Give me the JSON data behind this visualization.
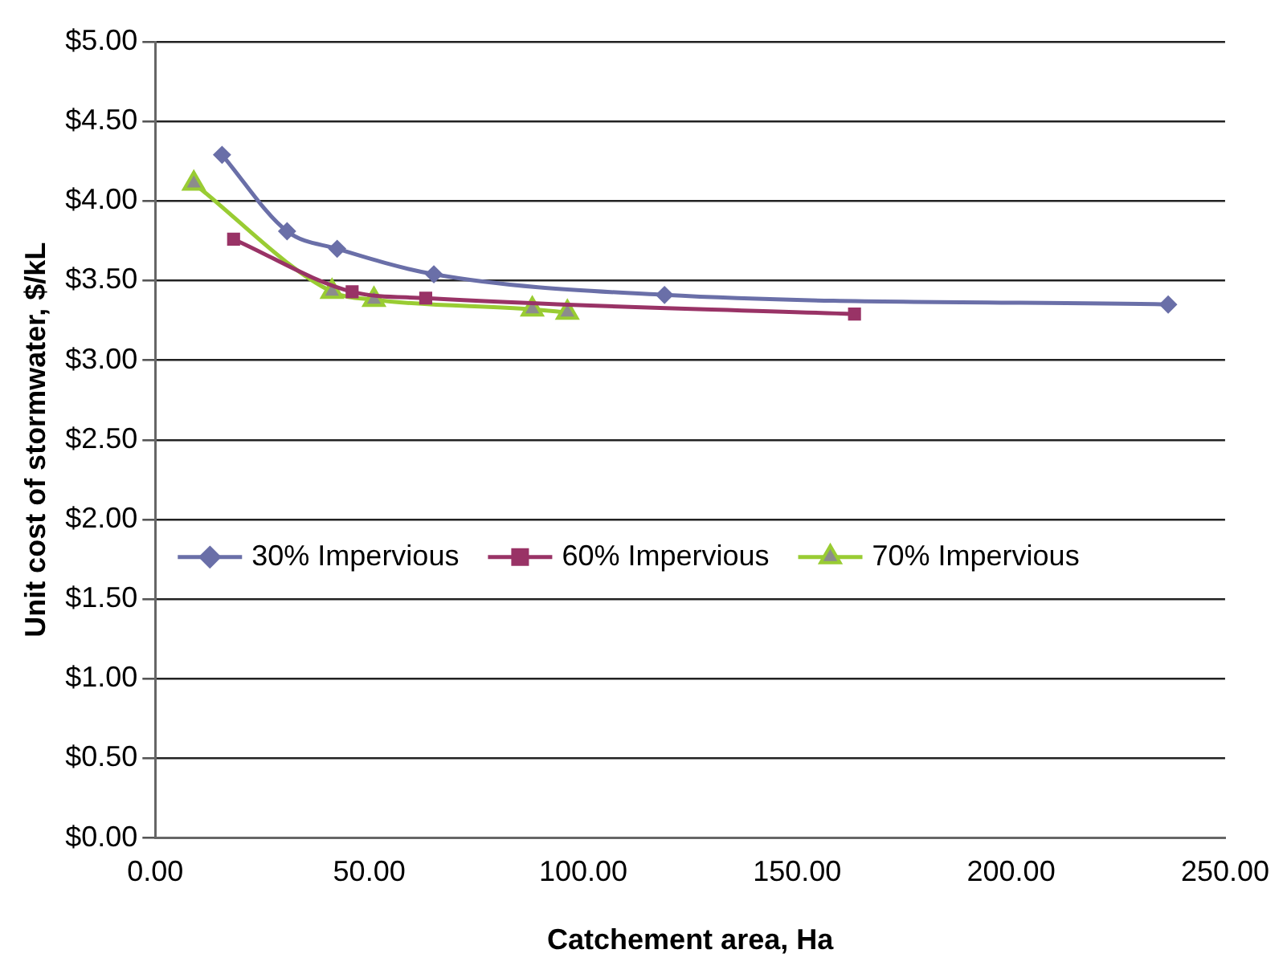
{
  "chart_data": {
    "type": "line",
    "xlabel": "Catchement area, Ha",
    "ylabel": "Unit cost of stormwater, $/kL",
    "xlim": [
      0,
      250
    ],
    "xticks": [
      {
        "value": 0,
        "label": "0.00"
      },
      {
        "value": 50,
        "label": "50.00"
      },
      {
        "value": 100,
        "label": "100.00"
      },
      {
        "value": 150,
        "label": "150.00"
      },
      {
        "value": 200,
        "label": "200.00"
      },
      {
        "value": 250,
        "label": "250.00"
      }
    ],
    "ylim": [
      0,
      5
    ],
    "yticks": [
      {
        "value": 0,
        "label": "$0.00"
      },
      {
        "value": 0.5,
        "label": "$0.50"
      },
      {
        "value": 1,
        "label": "$1.00"
      },
      {
        "value": 1.5,
        "label": "$1.50"
      },
      {
        "value": 2,
        "label": "$2.00"
      },
      {
        "value": 2.5,
        "label": "$2.50"
      },
      {
        "value": 3,
        "label": "$3.00"
      },
      {
        "value": 3.5,
        "label": "$3.50"
      },
      {
        "value": 4,
        "label": "$4.00"
      },
      {
        "value": 4.5,
        "label": "$4.50"
      },
      {
        "value": 5,
        "label": "$5.00"
      }
    ],
    "grid": "y",
    "legend": "left",
    "series": [
      {
        "name": "30% Impervious",
        "color": "#6a6fa8",
        "marker": "diamond",
        "x": [
          15.6,
          30.8,
          42.5,
          65.1,
          119,
          236.7
        ],
        "values": [
          4.29,
          3.81,
          3.7,
          3.54,
          3.41,
          3.35
        ]
      },
      {
        "name": "60% Impervious",
        "color": "#993366",
        "marker": "square",
        "x": [
          18.3,
          46,
          63.2,
          163.4
        ],
        "values": [
          3.76,
          3.43,
          3.39,
          3.29
        ]
      },
      {
        "name": "70% Impervious",
        "color": "#99cc33",
        "marker": "triangle",
        "x": [
          9,
          41.3,
          51.1,
          88.1,
          96.3
        ],
        "values": [
          4.11,
          3.43,
          3.38,
          3.32,
          3.3
        ]
      }
    ]
  }
}
